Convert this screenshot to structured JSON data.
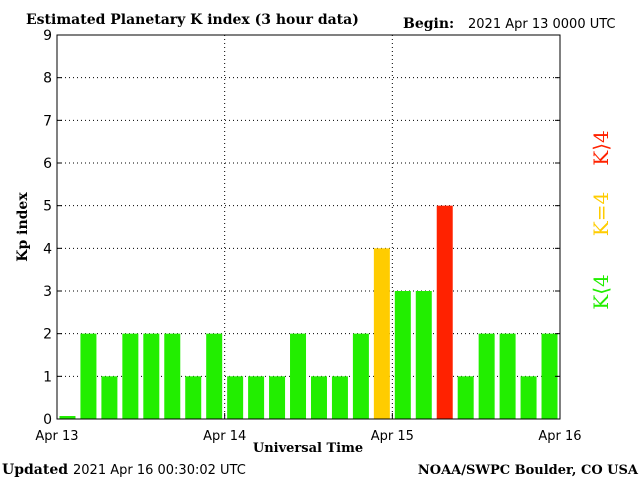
{
  "header": {
    "title": "Estimated Planetary K index (3 hour data)",
    "begin_label": "Begin:",
    "begin_value": "2021 Apr 13 0000 UTC"
  },
  "footer": {
    "updated_label": "Updated",
    "updated_value": "2021 Apr 16 00:30:02 UTC",
    "credit": "NOAA/SWPC Boulder, CO USA"
  },
  "legend": {
    "k_gt4": "K>4",
    "k_eq4": "K=4",
    "k_lt4": "K<4"
  },
  "colors": {
    "k_lt4": "#22ee00",
    "k_eq4": "#ffcc00",
    "k_gt4": "#ff2200",
    "axis": "#000000"
  },
  "chart_data": {
    "type": "bar",
    "title": "Estimated Planetary K index (3 hour data)",
    "xlabel": "Universal Time",
    "ylabel": "Kp index",
    "ylim": [
      0,
      9
    ],
    "yticks": [
      "0",
      "1",
      "2",
      "3",
      "4",
      "5",
      "6",
      "7",
      "8",
      "9"
    ],
    "xticks": [
      "Apr 13",
      "Apr 14",
      "Apr 15",
      "Apr 16"
    ],
    "grid": true,
    "values": [
      0.07,
      2,
      1,
      2,
      2,
      2,
      1,
      2,
      1,
      1,
      1,
      2,
      1,
      1,
      2,
      4,
      3,
      3,
      5,
      1,
      2,
      2,
      1,
      2
    ]
  }
}
